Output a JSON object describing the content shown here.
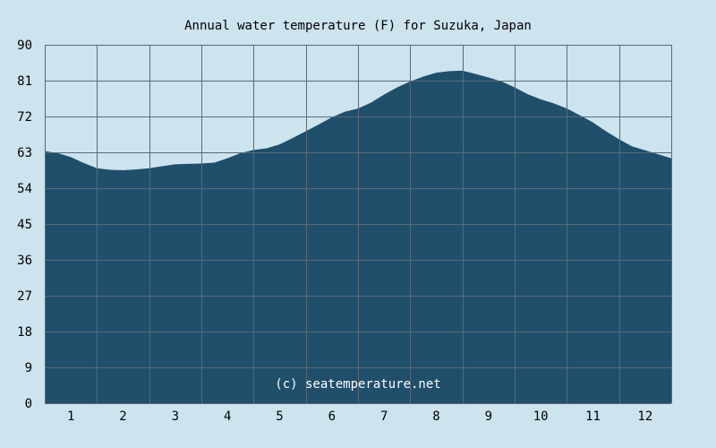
{
  "chart_data": {
    "type": "area",
    "title": "Annual water temperature (F) for Suzuka, Japan",
    "xlabel": "",
    "ylabel": "",
    "x": [
      0.5,
      0.75,
      1.0,
      1.25,
      1.5,
      1.75,
      2.0,
      2.25,
      2.5,
      2.75,
      3.0,
      3.25,
      3.5,
      3.75,
      4.0,
      4.25,
      4.5,
      4.75,
      5.0,
      5.25,
      5.5,
      5.75,
      6.0,
      6.25,
      6.5,
      6.75,
      7.0,
      7.25,
      7.5,
      7.75,
      8.0,
      8.25,
      8.5,
      8.75,
      9.0,
      9.25,
      9.5,
      9.75,
      10.0,
      10.25,
      10.5,
      10.75,
      11.0,
      11.25,
      11.5,
      11.75,
      12.0,
      12.25,
      12.5
    ],
    "values": [
      63.3,
      62.8,
      61.8,
      60.3,
      59.0,
      58.6,
      58.5,
      58.7,
      59.0,
      59.5,
      60.0,
      60.1,
      60.2,
      60.4,
      61.5,
      62.8,
      63.6,
      64.0,
      65.0,
      66.6,
      68.3,
      70.0,
      71.8,
      73.2,
      74.0,
      75.5,
      77.5,
      79.3,
      80.8,
      82.0,
      83.0,
      83.4,
      83.5,
      82.7,
      81.8,
      80.8,
      79.3,
      77.6,
      76.3,
      75.3,
      74.0,
      72.3,
      70.5,
      68.3,
      66.3,
      64.5,
      63.5,
      62.5,
      61.5
    ],
    "categories": [
      "1",
      "2",
      "3",
      "4",
      "5",
      "6",
      "7",
      "8",
      "9",
      "10",
      "11",
      "12"
    ],
    "xlim": [
      0.5,
      12.5
    ],
    "ylim": [
      0,
      90
    ],
    "yticks": [
      "0",
      "9",
      "18",
      "27",
      "36",
      "45",
      "54",
      "63",
      "72",
      "81",
      "90"
    ],
    "grid": true,
    "legend": "none",
    "annotation": "(c) seatemperature.net",
    "colors": {
      "background": "#cde3ee",
      "fill": "#1f4f6b",
      "grid": "#5a6a78",
      "text": "#000000",
      "watermark": "#ffffff"
    }
  }
}
